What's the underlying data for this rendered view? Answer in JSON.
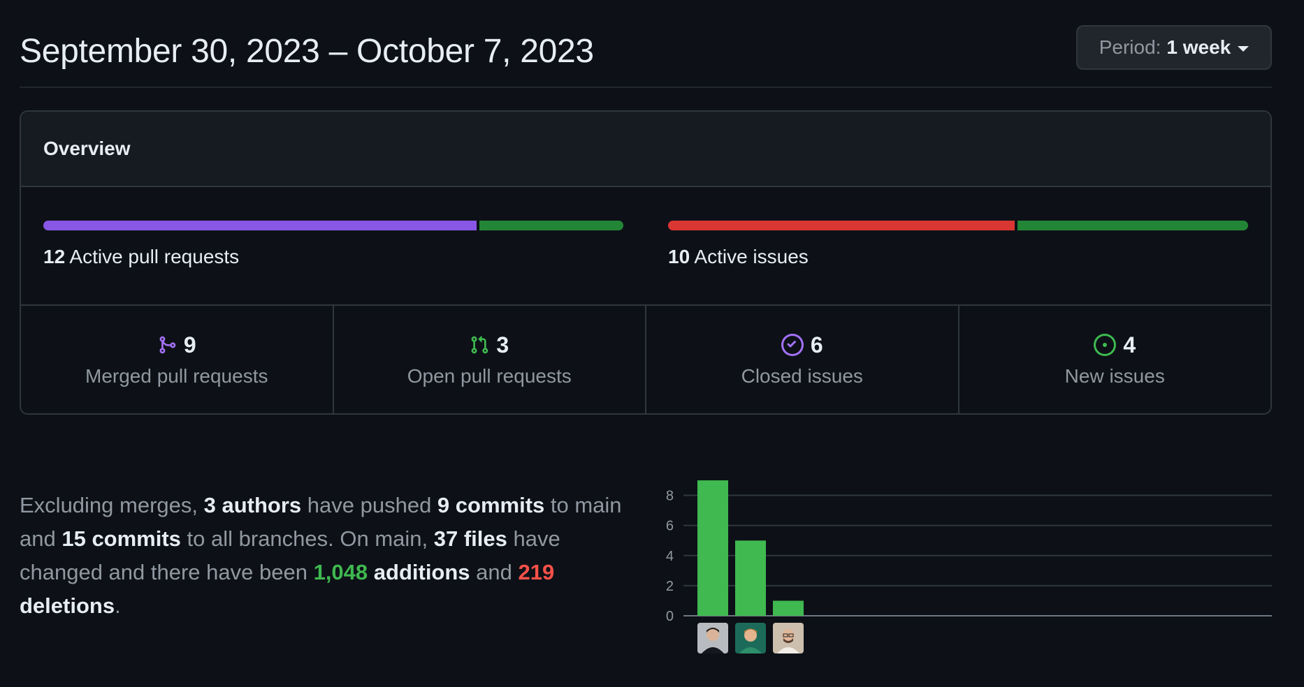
{
  "header": {
    "title": "September 30, 2023 – October 7, 2023",
    "period_label": "Period:",
    "period_value": "1 week"
  },
  "overview": {
    "title": "Overview",
    "pull_requests": {
      "count": "12",
      "label": "Active pull requests",
      "merged_fraction": 0.75,
      "open_fraction": 0.25,
      "colors": {
        "merged": "#8957e5",
        "open": "#238636"
      }
    },
    "issues": {
      "count": "10",
      "label": "Active issues",
      "closed_fraction": 0.6,
      "new_fraction": 0.4,
      "colors": {
        "closed": "#da3633",
        "new": "#238636"
      }
    },
    "stats": [
      {
        "icon": "git-merge-icon",
        "value": "9",
        "label": "Merged pull requests",
        "color": "#a371f7"
      },
      {
        "icon": "git-pull-request-icon",
        "value": "3",
        "label": "Open pull requests",
        "color": "#3fb950"
      },
      {
        "icon": "issue-closed-icon",
        "value": "6",
        "label": "Closed issues",
        "color": "#a371f7"
      },
      {
        "icon": "issue-opened-icon",
        "value": "4",
        "label": "New issues",
        "color": "#3fb950"
      }
    ]
  },
  "summary": {
    "t1": "Excluding merges, ",
    "authors": "3 authors",
    "t2": " have pushed ",
    "commits_main": "9 commits",
    "t3": " to main and ",
    "commits_all": "15 commits",
    "t4": " to all branches. On main, ",
    "files": "37 files",
    "t5": " have changed and there have been ",
    "additions_num": "1,048",
    "additions_word": " additions",
    "t6": " and ",
    "deletions_num": "219",
    "deletions_word": " deletions",
    "t7": "."
  },
  "chart_data": {
    "type": "bar",
    "categories": [
      "author-1",
      "author-2",
      "author-3"
    ],
    "values": [
      9,
      5,
      1
    ],
    "yticks": [
      0,
      2,
      4,
      6,
      8
    ],
    "ylim": [
      0,
      9
    ],
    "bar_color": "#3fb950",
    "grid": true
  }
}
